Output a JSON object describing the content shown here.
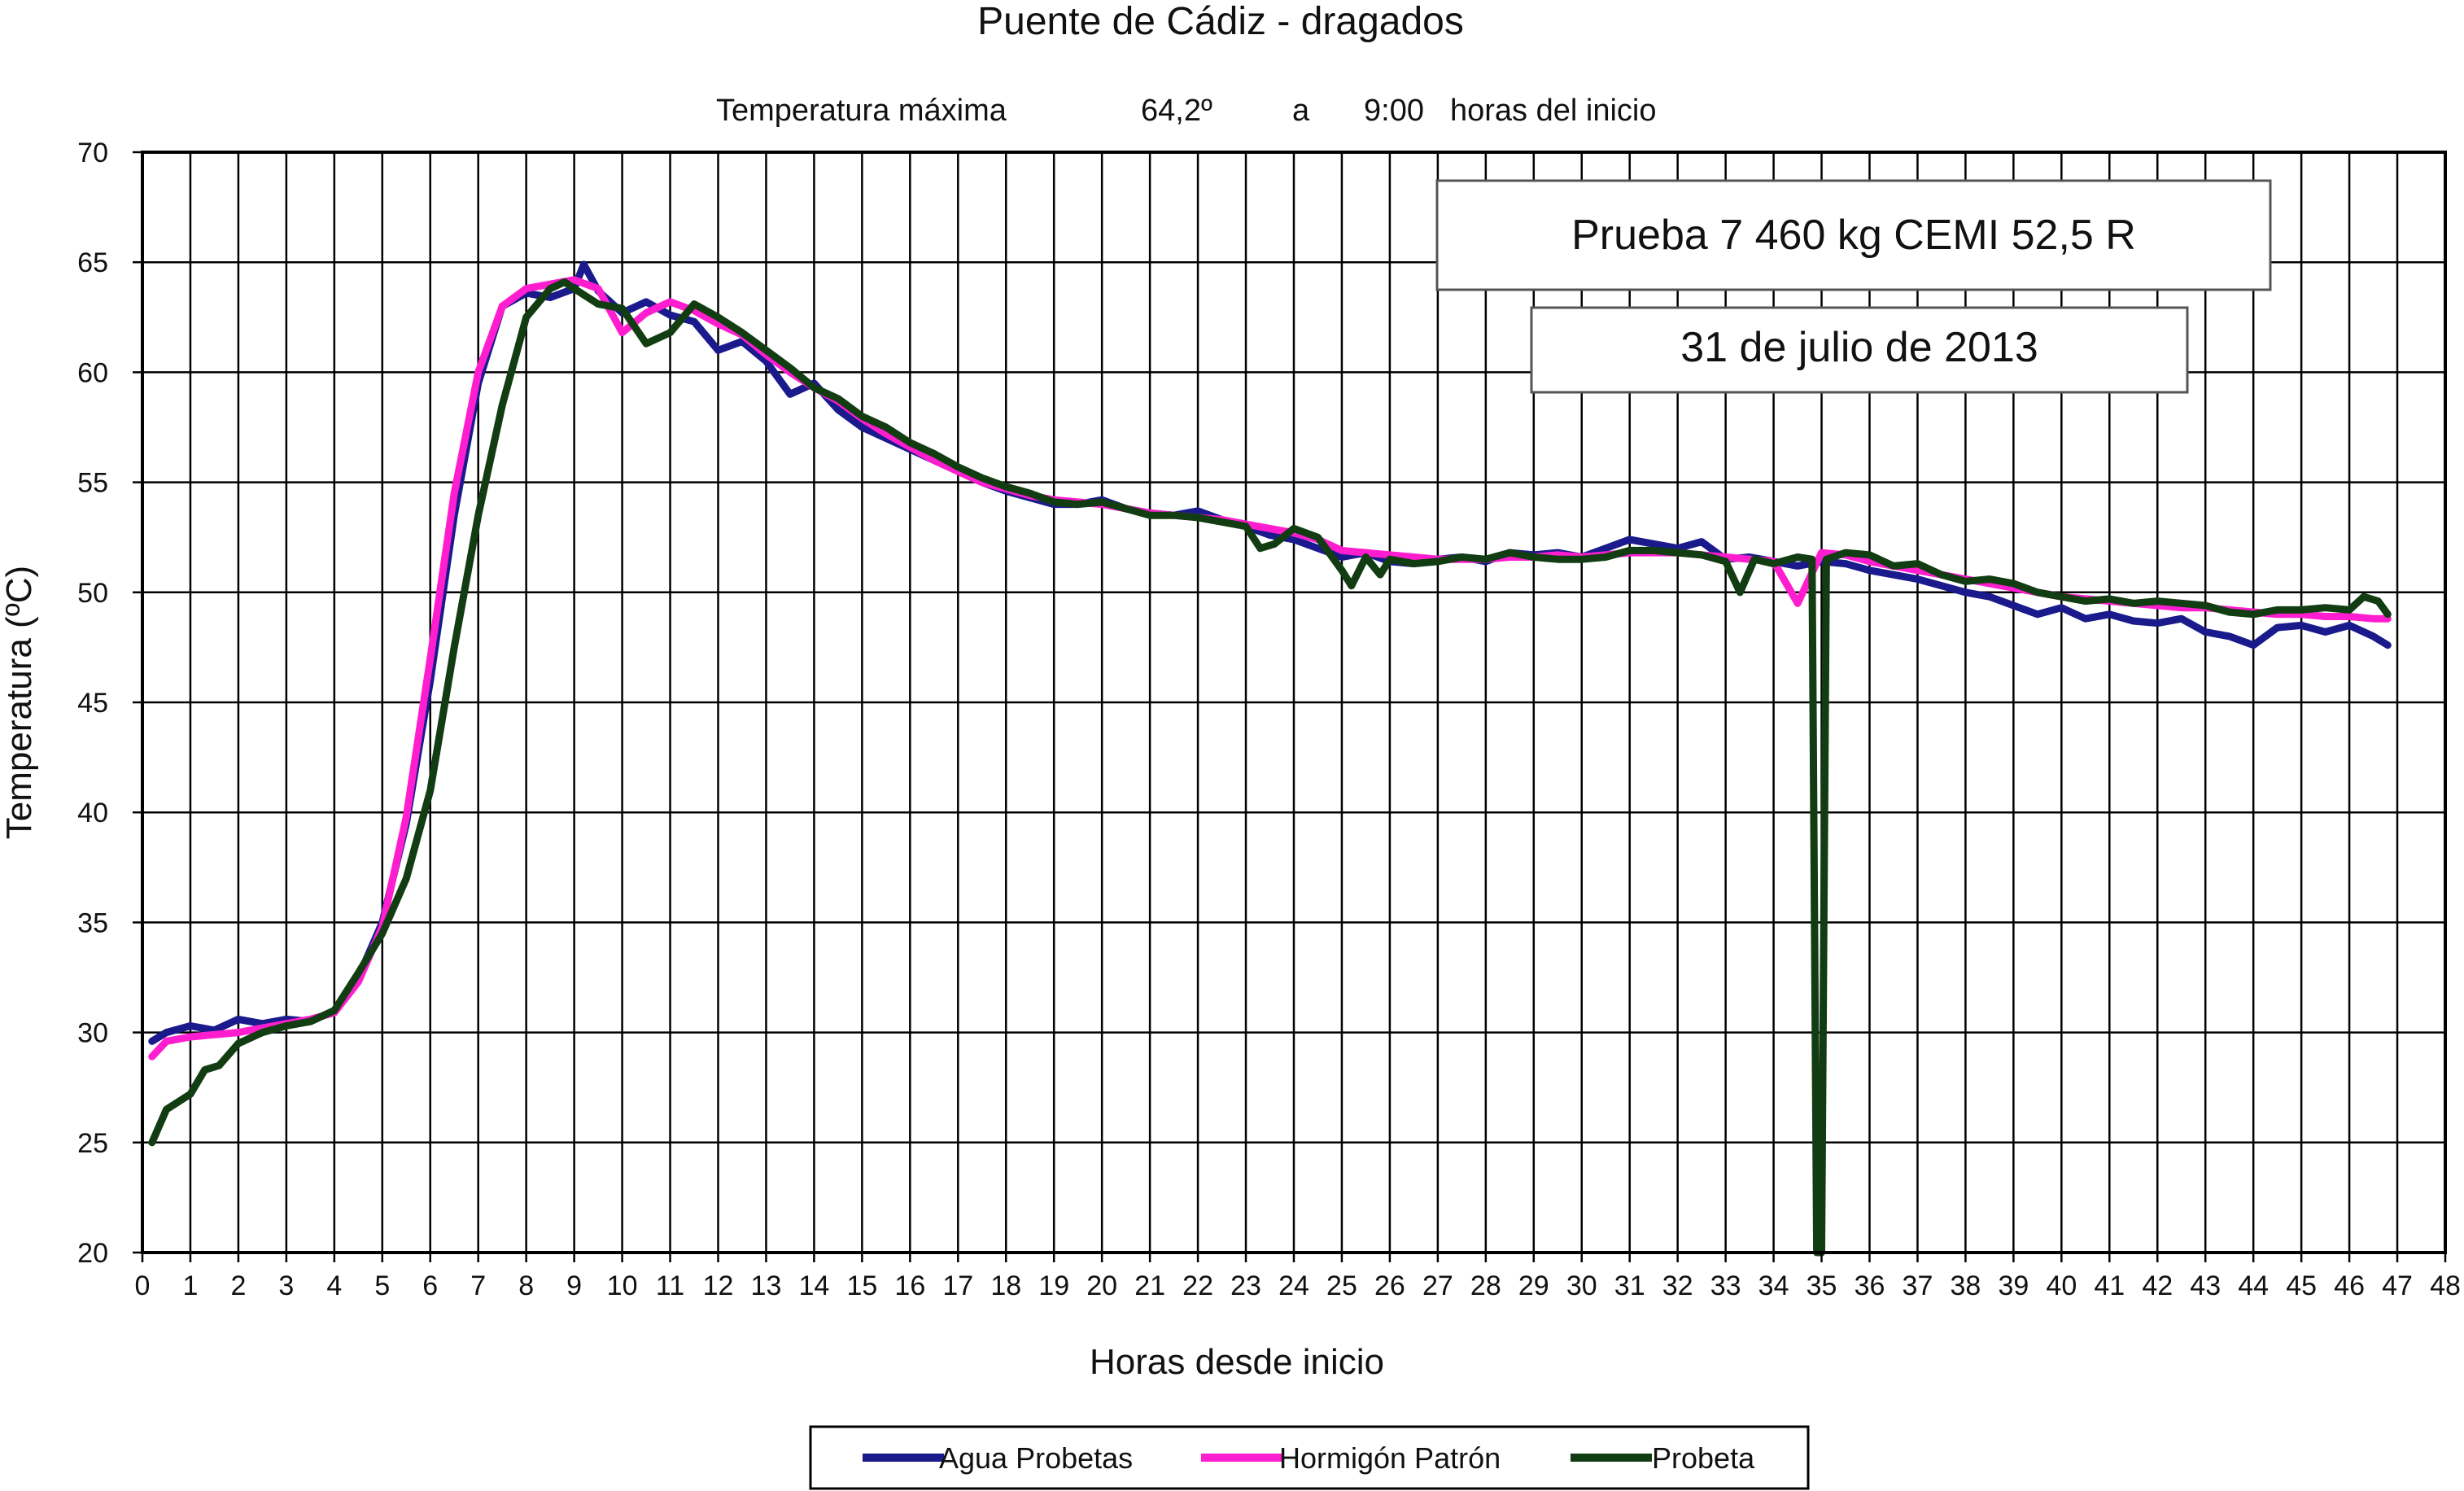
{
  "chart_data": {
    "type": "line",
    "title": "Puente de Cádiz - dragados",
    "subtitle": {
      "label": "Temperatura  máxima",
      "value": "64,2º",
      "connector": "a",
      "time": "9:00",
      "suffix": "horas del inicio"
    },
    "annotations": [
      "Prueba 7 460 kg CEMI 52,5 R",
      "31 de julio de 2013"
    ],
    "xlabel": "Horas desde inicio",
    "ylabel": "Temperatura (ºC)",
    "xlim": [
      0,
      48
    ],
    "ylim": [
      20,
      70
    ],
    "xticks": [
      0,
      1,
      2,
      3,
      4,
      5,
      6,
      7,
      8,
      9,
      10,
      11,
      12,
      13,
      14,
      15,
      16,
      17,
      18,
      19,
      20,
      21,
      22,
      23,
      24,
      25,
      26,
      27,
      28,
      29,
      30,
      31,
      32,
      33,
      34,
      35,
      36,
      37,
      38,
      39,
      40,
      41,
      42,
      43,
      44,
      45,
      46,
      47,
      48
    ],
    "yticks": [
      20,
      25,
      30,
      35,
      40,
      45,
      50,
      55,
      60,
      65,
      70
    ],
    "grid": true,
    "legend_position": "bottom",
    "series": [
      {
        "name": "Agua Probetas",
        "color": "#1a1a8c",
        "x": [
          0.2,
          0.5,
          1,
          1.5,
          2,
          2.5,
          3,
          3.5,
          4,
          4.5,
          5,
          5.5,
          6,
          6.5,
          7,
          7.5,
          8,
          8.5,
          9,
          9.2,
          9.5,
          10,
          10.5,
          11,
          11.5,
          12,
          12.5,
          13,
          13.5,
          14,
          14.5,
          15,
          15.5,
          16,
          16.5,
          17,
          17.5,
          18,
          18.5,
          19,
          19.5,
          20,
          20.5,
          21,
          21.5,
          22,
          22.5,
          23,
          23.5,
          24,
          24.5,
          25,
          25.5,
          26,
          26.5,
          27,
          27.5,
          28,
          28.5,
          29,
          29.5,
          30,
          30.5,
          31,
          31.5,
          32,
          32.5,
          33,
          33.5,
          34,
          34.5,
          35,
          35.5,
          36,
          36.5,
          37,
          37.5,
          38,
          38.5,
          39,
          39.5,
          40,
          40.5,
          41,
          41.5,
          42,
          42.5,
          43,
          43.5,
          44,
          44.5,
          45,
          45.5,
          46,
          46.5,
          46.8
        ],
        "y": [
          29.6,
          30.0,
          30.3,
          30.1,
          30.6,
          30.4,
          30.6,
          30.5,
          31.0,
          32.5,
          35.0,
          39.5,
          46.0,
          53.5,
          59.5,
          63.0,
          63.6,
          63.4,
          63.8,
          64.9,
          63.7,
          62.7,
          63.2,
          62.6,
          62.3,
          61.0,
          61.4,
          60.5,
          59.0,
          59.5,
          58.3,
          57.5,
          57.0,
          56.5,
          56.0,
          55.5,
          55.0,
          54.6,
          54.3,
          54.0,
          54.0,
          54.2,
          53.8,
          53.6,
          53.5,
          53.7,
          53.3,
          53.0,
          52.6,
          52.4,
          52.0,
          51.6,
          51.8,
          51.4,
          51.3,
          51.5,
          51.6,
          51.4,
          51.8,
          51.7,
          51.8,
          51.6,
          52.0,
          52.4,
          52.2,
          52.0,
          52.3,
          51.5,
          51.6,
          51.4,
          51.2,
          51.4,
          51.3,
          51.0,
          50.8,
          50.6,
          50.3,
          50.0,
          49.8,
          49.4,
          49.0,
          49.3,
          48.8,
          49.0,
          48.7,
          48.6,
          48.8,
          48.2,
          48.0,
          47.6,
          48.4,
          48.5,
          48.2,
          48.5,
          48.0,
          47.6
        ]
      },
      {
        "name": "Hormigón Patrón",
        "color": "#ff1ecf",
        "x": [
          0.2,
          0.5,
          1,
          1.5,
          2,
          2.5,
          3,
          3.5,
          4,
          4.5,
          5,
          5.5,
          6,
          6.5,
          7,
          7.5,
          8,
          8.5,
          9,
          9.5,
          10,
          10.5,
          11,
          11.5,
          12,
          12.5,
          13,
          13.5,
          14,
          14.5,
          15,
          15.5,
          16,
          16.5,
          17,
          17.5,
          18,
          18.5,
          19,
          19.5,
          20,
          20.5,
          21,
          21.5,
          22,
          22.5,
          23,
          23.5,
          24,
          24.5,
          25,
          25.5,
          26,
          26.5,
          27,
          27.5,
          28,
          28.5,
          29,
          29.5,
          30,
          30.5,
          31,
          31.5,
          32,
          32.5,
          33,
          33.5,
          34,
          34.5,
          35,
          35.5,
          36,
          36.5,
          37,
          37.5,
          38,
          38.5,
          39,
          39.5,
          40,
          40.5,
          41,
          41.5,
          42,
          42.5,
          43,
          43.5,
          44,
          44.5,
          45,
          45.5,
          46,
          46.5,
          46.8
        ],
        "y": [
          28.9,
          29.6,
          29.8,
          29.9,
          30.0,
          30.2,
          30.4,
          30.6,
          30.9,
          32.3,
          34.8,
          39.8,
          47.0,
          54.5,
          60.0,
          63.0,
          63.8,
          64.0,
          64.2,
          63.8,
          61.8,
          62.7,
          63.2,
          62.8,
          62.2,
          61.7,
          60.8,
          60.0,
          59.3,
          58.7,
          57.9,
          57.2,
          56.6,
          56.0,
          55.5,
          55.0,
          54.7,
          54.4,
          54.2,
          54.1,
          54.0,
          53.8,
          53.6,
          53.5,
          53.4,
          53.3,
          53.1,
          52.9,
          52.7,
          52.4,
          51.9,
          51.8,
          51.7,
          51.6,
          51.5,
          51.5,
          51.5,
          51.6,
          51.6,
          51.7,
          51.6,
          51.7,
          51.8,
          51.8,
          51.8,
          51.7,
          51.6,
          51.5,
          51.4,
          49.5,
          51.8,
          51.7,
          51.4,
          51.2,
          51.0,
          50.8,
          50.6,
          50.4,
          50.2,
          50.0,
          49.8,
          49.7,
          49.6,
          49.5,
          49.4,
          49.3,
          49.3,
          49.2,
          49.1,
          49.0,
          49.0,
          48.9,
          48.9,
          48.8,
          48.8
        ]
      },
      {
        "name": "Probeta",
        "color": "#123d12",
        "x": [
          0.2,
          0.5,
          1,
          1.3,
          1.6,
          2,
          2.5,
          3,
          3.5,
          4,
          4.5,
          5,
          5.5,
          6,
          6.5,
          7,
          7.5,
          8,
          8.5,
          8.8,
          9,
          9.5,
          10,
          10.5,
          11,
          11.5,
          12,
          12.5,
          13,
          13.5,
          14,
          14.5,
          15,
          15.5,
          16,
          16.5,
          17,
          17.5,
          18,
          18.5,
          19,
          19.5,
          20,
          20.5,
          21,
          21.5,
          22,
          22.5,
          23,
          23.3,
          23.6,
          24,
          24.5,
          25,
          25.2,
          25.5,
          25.8,
          26,
          26.5,
          27,
          27.5,
          28,
          28.5,
          29,
          29.5,
          30,
          30.5,
          31,
          31.5,
          32,
          32.5,
          33,
          33.3,
          33.6,
          34,
          34.5,
          34.8,
          34.9,
          35.0,
          35.1,
          35.5,
          36,
          36.5,
          37,
          37.5,
          38,
          38.5,
          39,
          39.5,
          40,
          40.5,
          41,
          41.5,
          42,
          42.5,
          43,
          43.5,
          44,
          44.5,
          45,
          45.5,
          46,
          46.3,
          46.6,
          46.8
        ],
        "y": [
          25.0,
          26.5,
          27.2,
          28.3,
          28.5,
          29.5,
          30.0,
          30.3,
          30.5,
          31.0,
          32.7,
          34.5,
          37.0,
          41.0,
          47.5,
          53.5,
          58.5,
          62.5,
          63.8,
          64.1,
          63.8,
          63.1,
          62.9,
          61.3,
          61.8,
          63.1,
          62.5,
          61.8,
          61.0,
          60.2,
          59.3,
          58.8,
          58.0,
          57.5,
          56.8,
          56.3,
          55.7,
          55.2,
          54.8,
          54.5,
          54.1,
          54.0,
          54.1,
          53.8,
          53.5,
          53.5,
          53.4,
          53.2,
          53.0,
          52.0,
          52.2,
          52.9,
          52.5,
          51.0,
          50.3,
          51.6,
          50.8,
          51.5,
          51.3,
          51.4,
          51.6,
          51.5,
          51.8,
          51.6,
          51.5,
          51.5,
          51.6,
          51.9,
          51.9,
          51.8,
          51.7,
          51.4,
          50.0,
          51.5,
          51.3,
          51.6,
          51.5,
          20.0,
          20.0,
          51.5,
          51.8,
          51.7,
          51.2,
          51.3,
          50.8,
          50.5,
          50.6,
          50.4,
          50.0,
          49.8,
          49.6,
          49.7,
          49.5,
          49.6,
          49.5,
          49.4,
          49.1,
          49.0,
          49.2,
          49.2,
          49.3,
          49.2,
          49.8,
          49.6,
          49.0
        ]
      }
    ]
  }
}
